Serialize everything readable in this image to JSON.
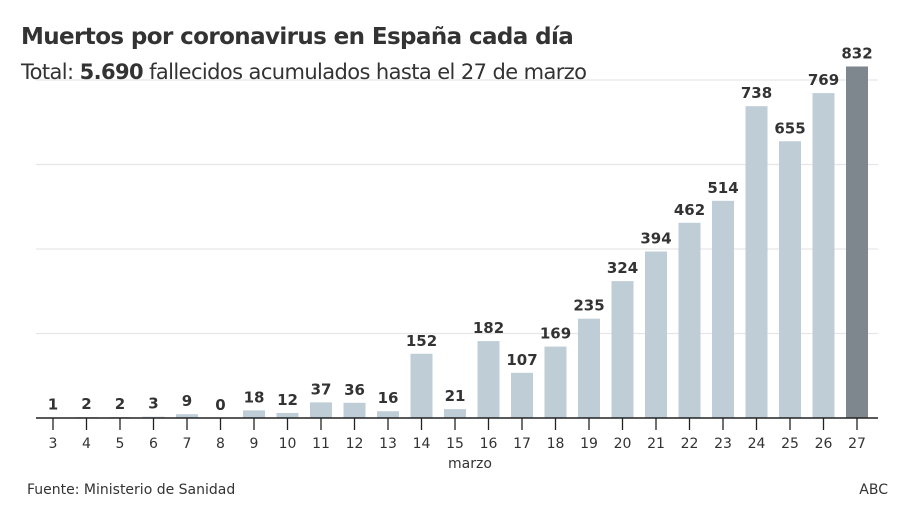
{
  "chart_data": {
    "type": "bar",
    "title": "Muertos por coronavirus en España cada día",
    "subtitle_prefix": "Total: ",
    "subtitle_bold": "5.690",
    "subtitle_suffix": " fallecidos acumulados hasta el 27 de marzo",
    "xlabel": "marzo",
    "ylabel": "",
    "ylim": [
      0,
      800
    ],
    "grid": true,
    "gridlines": [
      200,
      400,
      600,
      800
    ],
    "categories": [
      "3",
      "4",
      "5",
      "6",
      "7",
      "8",
      "9",
      "10",
      "11",
      "12",
      "13",
      "14",
      "15",
      "16",
      "17",
      "18",
      "19",
      "20",
      "21",
      "22",
      "23",
      "24",
      "25",
      "26",
      "27"
    ],
    "values": [
      1,
      2,
      2,
      3,
      9,
      0,
      18,
      12,
      37,
      36,
      16,
      152,
      21,
      182,
      107,
      169,
      235,
      324,
      394,
      462,
      514,
      738,
      655,
      769,
      832
    ],
    "highlight_index": 24,
    "colors": {
      "bar": "#bfcdd6",
      "highlight": "#7f878e",
      "text": "#333333",
      "grid": "#e6e6e6",
      "axis": "#222222"
    }
  },
  "footer": {
    "source": "Fuente: Ministerio de Sanidad",
    "brand": "ABC"
  }
}
